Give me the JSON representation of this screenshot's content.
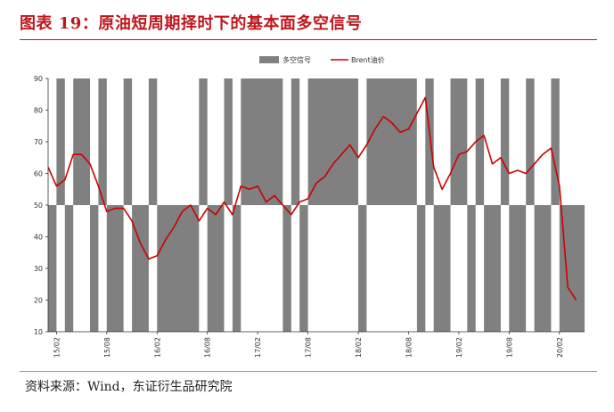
{
  "header": {
    "title": "图表 19：原油短周期择时下的基本面多空信号"
  },
  "footer": {
    "source": "资料来源：Wind，东证衍生品研究院"
  },
  "colors": {
    "title": "#c0161c",
    "signal": "#808080",
    "price": "#cc0000"
  },
  "chart_data": {
    "type": "line",
    "title": "",
    "xlabel": "",
    "ylabel": "",
    "ylim": [
      10,
      90
    ],
    "yticks": [
      10,
      20,
      30,
      40,
      50,
      60,
      70,
      80,
      90
    ],
    "x_tick_labels": [
      "15/02",
      "15/08",
      "16/02",
      "16/08",
      "17/02",
      "17/08",
      "18/02",
      "18/08",
      "19/02",
      "19/08",
      "20/02"
    ],
    "x_range": [
      "2015-02",
      "2020-05"
    ],
    "legend": {
      "placement": "top-center",
      "entries": [
        "多空信号",
        "Brent油价"
      ]
    },
    "series": [
      {
        "name": "Brent油价",
        "type": "line",
        "color": "#cc0000",
        "x": [
          "2015-01",
          "2015-02",
          "2015-03",
          "2015-04",
          "2015-05",
          "2015-06",
          "2015-07",
          "2015-08",
          "2015-09",
          "2015-10",
          "2015-11",
          "2015-12",
          "2016-01",
          "2016-02",
          "2016-03",
          "2016-04",
          "2016-05",
          "2016-06",
          "2016-07",
          "2016-08",
          "2016-09",
          "2016-10",
          "2016-11",
          "2016-12",
          "2017-01",
          "2017-02",
          "2017-03",
          "2017-04",
          "2017-05",
          "2017-06",
          "2017-07",
          "2017-08",
          "2017-09",
          "2017-10",
          "2017-11",
          "2017-12",
          "2018-01",
          "2018-02",
          "2018-03",
          "2018-04",
          "2018-05",
          "2018-06",
          "2018-07",
          "2018-08",
          "2018-09",
          "2018-10",
          "2018-11",
          "2018-12",
          "2019-01",
          "2019-02",
          "2019-03",
          "2019-04",
          "2019-05",
          "2019-06",
          "2019-07",
          "2019-08",
          "2019-09",
          "2019-10",
          "2019-11",
          "2019-12",
          "2020-01",
          "2020-02",
          "2020-03",
          "2020-04"
        ],
        "y": [
          62,
          56,
          58,
          66,
          66,
          63,
          56,
          48,
          49,
          49,
          45,
          38,
          33,
          34,
          39,
          43,
          48,
          50,
          45,
          49,
          47,
          51,
          47,
          56,
          55,
          56,
          51,
          53,
          50,
          47,
          51,
          52,
          57,
          59,
          63,
          66,
          69,
          65,
          69,
          74,
          78,
          76,
          73,
          74,
          79,
          84,
          62,
          55,
          60,
          66,
          67,
          70,
          72,
          63,
          65,
          60,
          61,
          60,
          63,
          66,
          68,
          56,
          24,
          20
        ]
      },
      {
        "name": "多空信号",
        "type": "signal",
        "color": "#808080",
        "values_note": "90 = 多 (long), 10 = 空 (short)",
        "segments": [
          {
            "start": "2015-01",
            "end": "2015-02",
            "value": 10
          },
          {
            "start": "2015-02",
            "end": "2015-03",
            "value": 90
          },
          {
            "start": "2015-03",
            "end": "2015-04",
            "value": 10
          },
          {
            "start": "2015-04",
            "end": "2015-06",
            "value": 90
          },
          {
            "start": "2015-06",
            "end": "2015-07",
            "value": 10
          },
          {
            "start": "2015-07",
            "end": "2015-08",
            "value": 90
          },
          {
            "start": "2015-08",
            "end": "2015-10",
            "value": 10
          },
          {
            "start": "2015-10",
            "end": "2015-11",
            "value": 90
          },
          {
            "start": "2015-11",
            "end": "2016-01",
            "value": 10
          },
          {
            "start": "2016-01",
            "end": "2016-02",
            "value": 90
          },
          {
            "start": "2016-02",
            "end": "2016-07",
            "value": 10
          },
          {
            "start": "2016-07",
            "end": "2016-08",
            "value": 90
          },
          {
            "start": "2016-08",
            "end": "2016-10",
            "value": 10
          },
          {
            "start": "2016-10",
            "end": "2016-11",
            "value": 90
          },
          {
            "start": "2016-11",
            "end": "2016-12",
            "value": 10
          },
          {
            "start": "2016-12",
            "end": "2017-05",
            "value": 90
          },
          {
            "start": "2017-05",
            "end": "2017-06",
            "value": 10
          },
          {
            "start": "2017-06",
            "end": "2017-07",
            "value": 90
          },
          {
            "start": "2017-07",
            "end": "2017-08",
            "value": 10
          },
          {
            "start": "2017-08",
            "end": "2018-02",
            "value": 90
          },
          {
            "start": "2018-02",
            "end": "2018-03",
            "value": 10
          },
          {
            "start": "2018-03",
            "end": "2018-09",
            "value": 90
          },
          {
            "start": "2018-09",
            "end": "2018-10",
            "value": 10
          },
          {
            "start": "2018-10",
            "end": "2018-11",
            "value": 90
          },
          {
            "start": "2018-11",
            "end": "2019-01",
            "value": 10
          },
          {
            "start": "2019-01",
            "end": "2019-03",
            "value": 90
          },
          {
            "start": "2019-03",
            "end": "2019-04",
            "value": 10
          },
          {
            "start": "2019-04",
            "end": "2019-05",
            "value": 90
          },
          {
            "start": "2019-05",
            "end": "2019-07",
            "value": 10
          },
          {
            "start": "2019-07",
            "end": "2019-08",
            "value": 90
          },
          {
            "start": "2019-08",
            "end": "2019-10",
            "value": 10
          },
          {
            "start": "2019-10",
            "end": "2019-11",
            "value": 90
          },
          {
            "start": "2019-11",
            "end": "2020-01",
            "value": 10
          },
          {
            "start": "2020-01",
            "end": "2020-02",
            "value": 90
          },
          {
            "start": "2020-02",
            "end": "2020-05",
            "value": 10
          }
        ]
      }
    ]
  }
}
